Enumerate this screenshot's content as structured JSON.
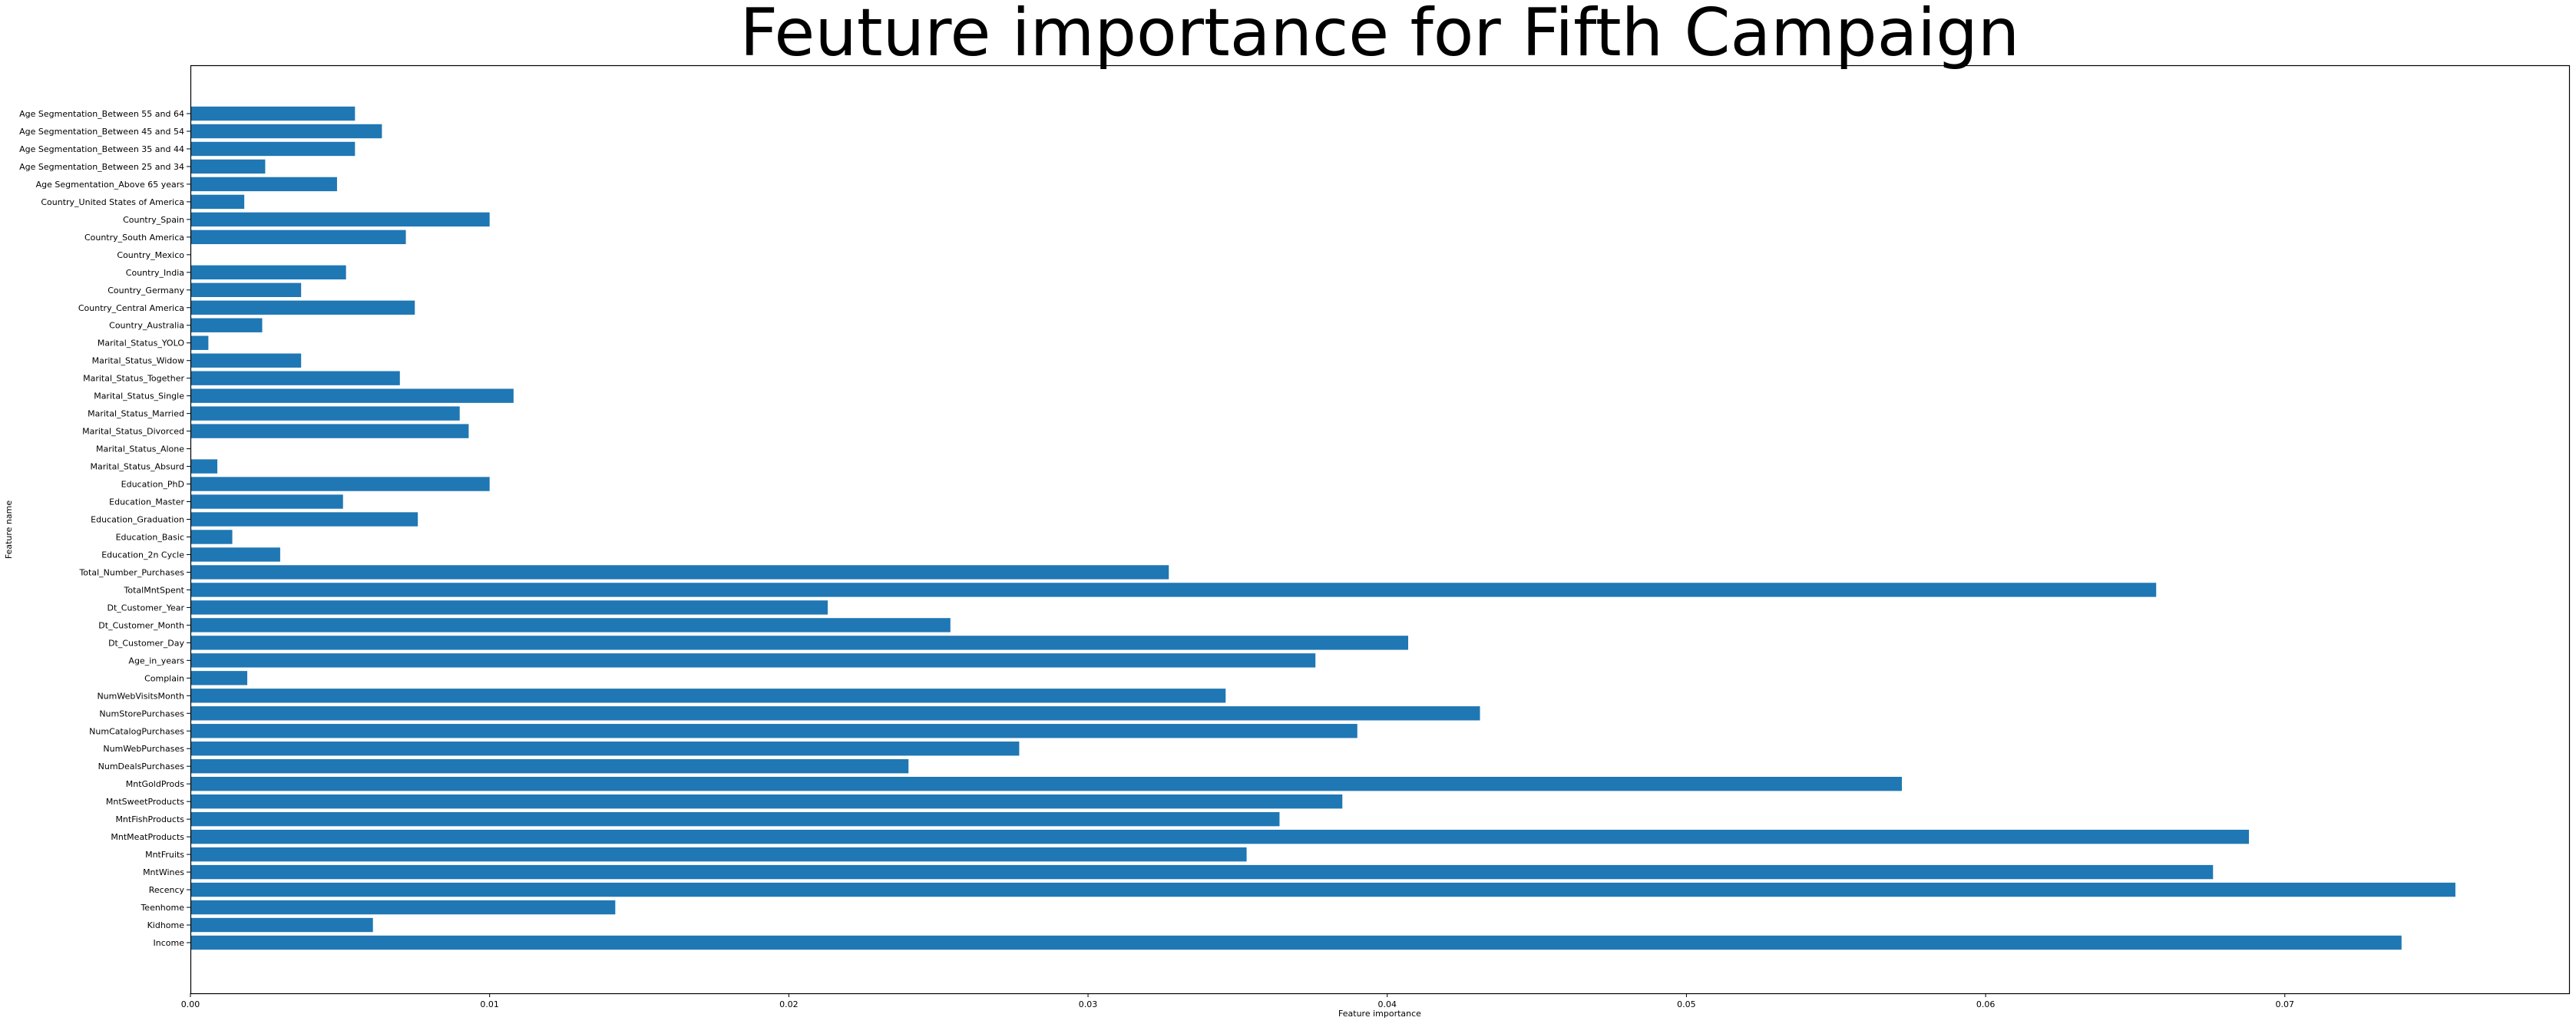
{
  "chart_data": {
    "type": "bar",
    "orientation": "horizontal",
    "title": "Feuture importance for Fifth Campaign",
    "xlabel": "Feature importance",
    "ylabel": "Feature name",
    "xlim": [
      0,
      0.0795
    ],
    "xticks": [
      0.0,
      0.01,
      0.02,
      0.03,
      0.04,
      0.05,
      0.06,
      0.07
    ],
    "xtick_labels": [
      "0.00",
      "0.01",
      "0.02",
      "0.03",
      "0.04",
      "0.05",
      "0.06",
      "0.07"
    ],
    "grid": false,
    "bar_color": "#1f77b4",
    "categories": [
      "Income",
      "Kidhome",
      "Teenhome",
      "Recency",
      "MntWines",
      "MntFruits",
      "MntMeatProducts",
      "MntFishProducts",
      "MntSweetProducts",
      "MntGoldProds",
      "NumDealsPurchases",
      "NumWebPurchases",
      "NumCatalogPurchases",
      "NumStorePurchases",
      "NumWebVisitsMonth",
      "Complain",
      "Age_in_years",
      "Dt_Customer_Day",
      "Dt_Customer_Month",
      "Dt_Customer_Year",
      "TotalMntSpent",
      "Total_Number_Purchases",
      "Education_2n Cycle",
      "Education_Basic",
      "Education_Graduation",
      "Education_Master",
      "Education_PhD",
      "Marital_Status_Absurd",
      "Marital_Status_Alone",
      "Marital_Status_Divorced",
      "Marital_Status_Married",
      "Marital_Status_Single",
      "Marital_Status_Together",
      "Marital_Status_Widow",
      "Marital_Status_YOLO",
      "Country_Australia",
      "Country_Central America",
      "Country_Germany",
      "Country_India",
      "Country_Mexico",
      "Country_South America",
      "Country_Spain",
      "Country_United States of America",
      "Age Segmentation_Above 65 years",
      "Age Segmentation_Between 25 and 34",
      "Age Segmentation_Between 35 and 44",
      "Age Segmentation_Between 45 and 54",
      "Age Segmentation_Between 55 and 64"
    ],
    "values": [
      0.0739,
      0.0061,
      0.0142,
      0.0757,
      0.0676,
      0.0353,
      0.0688,
      0.0364,
      0.0385,
      0.0572,
      0.024,
      0.0277,
      0.039,
      0.0431,
      0.0346,
      0.0019,
      0.0376,
      0.0407,
      0.0254,
      0.0213,
      0.0657,
      0.0327,
      0.003,
      0.0014,
      0.0076,
      0.0051,
      0.01,
      0.0009,
      0.0,
      0.0093,
      0.009,
      0.0108,
      0.007,
      0.0037,
      0.0006,
      0.0024,
      0.0075,
      0.0037,
      0.0052,
      0.0,
      0.0072,
      0.01,
      0.0018,
      0.0049,
      0.0025,
      0.0055,
      0.0064,
      0.0055
    ]
  }
}
